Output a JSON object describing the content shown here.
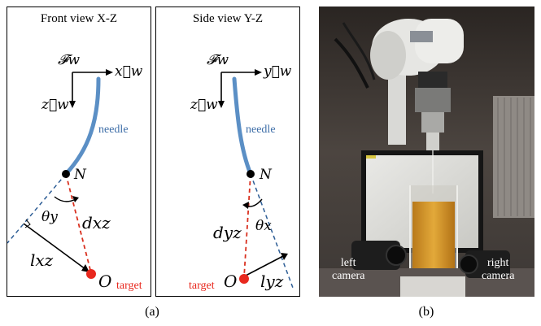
{
  "front_panel": {
    "title": "Front view X-Z",
    "frame": "𝓕w",
    "x_axis": "x⃗w",
    "z_axis": "z⃗w",
    "needle_label": "needle",
    "point_N": "N",
    "angle": "θy",
    "distance": "dxz",
    "lateral": "lxz",
    "point_O": "O",
    "target_label": "target"
  },
  "side_panel": {
    "title": "Side view Y-Z",
    "frame": "𝓕w",
    "y_axis": "y⃗w",
    "z_axis": "z⃗w",
    "needle_label": "needle",
    "point_N": "N",
    "angle": "θx",
    "distance": "dyz",
    "lateral": "lyz",
    "point_O": "O",
    "target_label": "target"
  },
  "photo": {
    "left_camera": "left\ncamera",
    "right_camera": "right\ncamera"
  },
  "captions": {
    "a": "(a)",
    "b": "(b)"
  },
  "colors": {
    "needle": "#5b8fc5",
    "target": "#e8281e",
    "dashed_red": "#d9301f",
    "dashed_blue": "#2e5e96",
    "needle_text": "#3e6ea8"
  }
}
